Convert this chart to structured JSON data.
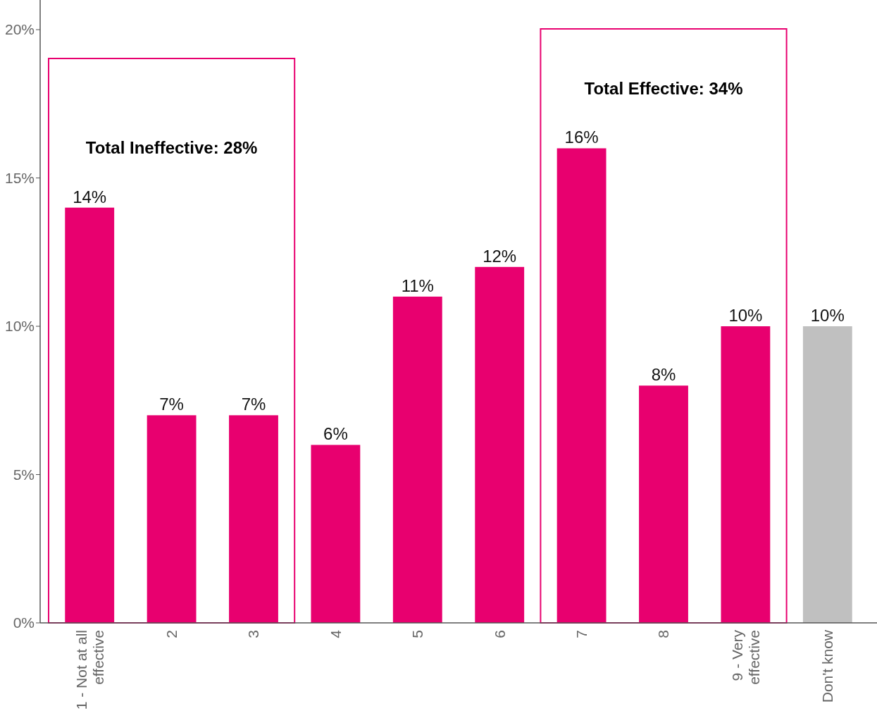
{
  "chart_data": {
    "type": "bar",
    "categories": [
      "1 - Not at all effective",
      "2",
      "3",
      "4",
      "5",
      "6",
      "7",
      "8",
      "9 - Very effective",
      "Don't know"
    ],
    "values": [
      14,
      7,
      7,
      6,
      11,
      12,
      16,
      8,
      10,
      10
    ],
    "colors": [
      "#e8006f",
      "#e8006f",
      "#e8006f",
      "#e8006f",
      "#e8006f",
      "#e8006f",
      "#e8006f",
      "#e8006f",
      "#e8006f",
      "#c0c0c0"
    ],
    "value_labels": [
      "14%",
      "7%",
      "7%",
      "6%",
      "11%",
      "12%",
      "16%",
      "8%",
      "10%",
      "10%"
    ],
    "ylim": [
      0,
      21
    ],
    "yticks": [
      {
        "value": 0,
        "label": "0%"
      },
      {
        "value": 5,
        "label": "5%"
      },
      {
        "value": 10,
        "label": "10%"
      },
      {
        "value": 15,
        "label": "15%"
      },
      {
        "value": 20,
        "label": "20%"
      }
    ],
    "annotations": [
      "Total Ineffective: 28%",
      "Total Effective: 34%"
    ],
    "grid": false
  }
}
